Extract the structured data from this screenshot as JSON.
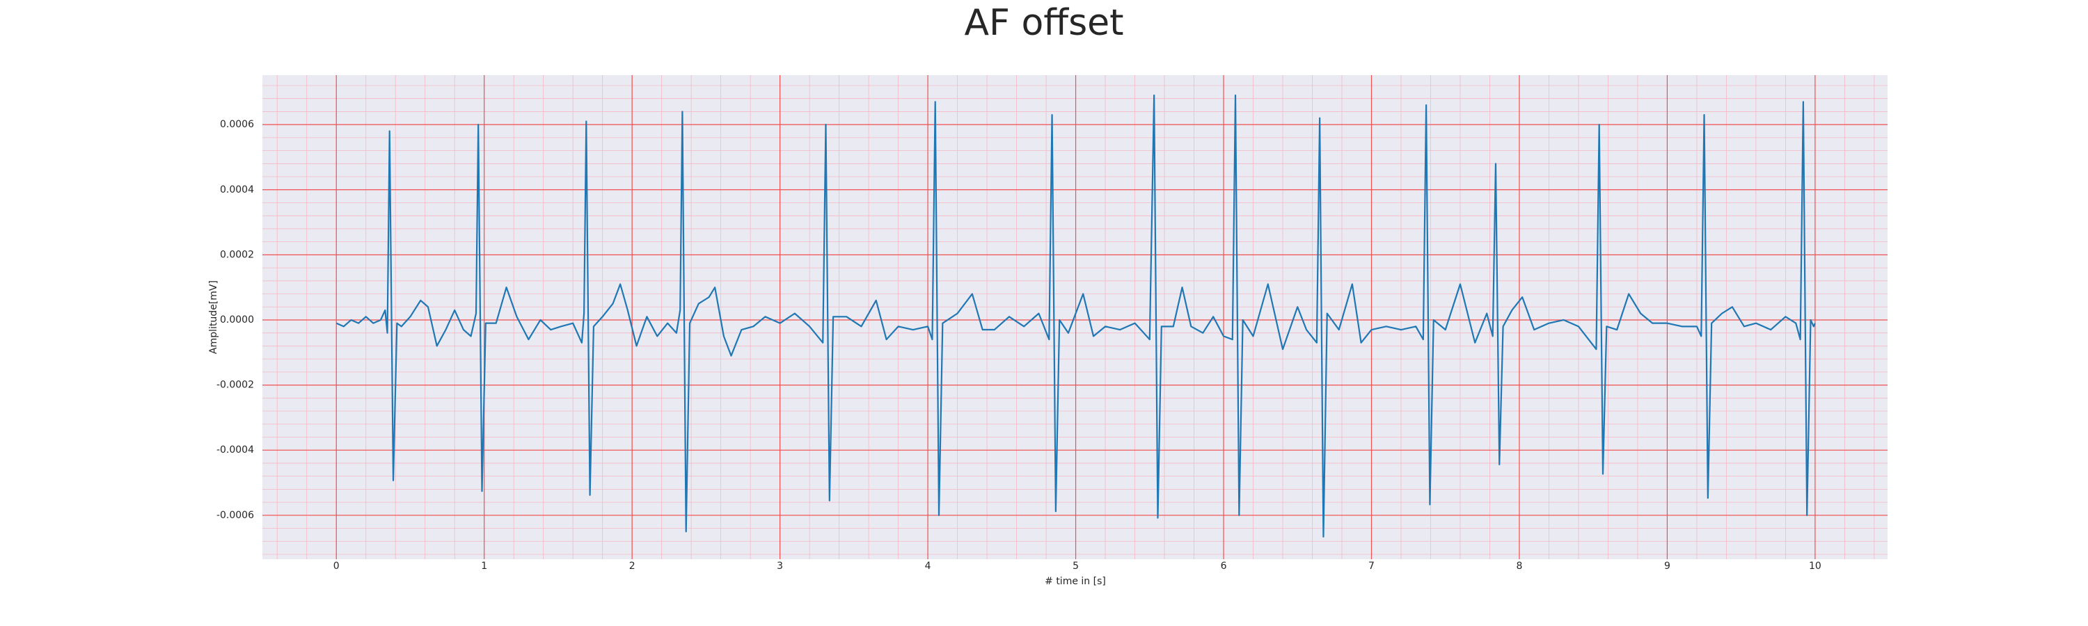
{
  "chart_data": {
    "type": "line",
    "title": "AF offset",
    "x_label": "# time in [s]",
    "y_label": "Amplitude[mV]",
    "color": "#1f77b4",
    "grid": true,
    "minor_grid": true,
    "xlim": [
      -0.5,
      10.49
    ],
    "ylim": [
      -0.000735,
      0.000752
    ],
    "xticks": [
      0,
      1,
      2,
      3,
      4,
      5,
      6,
      7,
      8,
      9,
      10
    ],
    "yticks": [
      -0.0006,
      -0.0004,
      -0.0002,
      {
        "value": 0,
        "label": "0.0000"
      },
      0.0002,
      0.0004,
      0.0006
    ],
    "x": [
      0.0,
      0.05,
      0.1,
      0.15,
      0.2,
      0.25,
      0.3,
      0.33,
      0.345,
      0.36,
      0.385,
      0.41,
      0.44,
      0.5,
      0.57,
      0.62,
      0.68,
      0.74,
      0.8,
      0.86,
      0.91,
      0.945,
      0.96,
      0.985,
      1.01,
      1.08,
      1.15,
      1.22,
      1.3,
      1.38,
      1.45,
      1.52,
      1.6,
      1.66,
      1.675,
      1.69,
      1.715,
      1.74,
      1.8,
      1.87,
      1.92,
      1.97,
      2.03,
      2.1,
      2.17,
      2.24,
      2.3,
      2.325,
      2.34,
      2.365,
      2.39,
      2.45,
      2.52,
      2.56,
      2.62,
      2.67,
      2.74,
      2.82,
      2.9,
      3.0,
      3.1,
      3.2,
      3.29,
      3.31,
      3.335,
      3.36,
      3.45,
      3.55,
      3.65,
      3.72,
      3.8,
      3.9,
      4.0,
      4.03,
      4.05,
      4.075,
      4.1,
      4.2,
      4.3,
      4.37,
      4.45,
      4.55,
      4.65,
      4.75,
      4.82,
      4.84,
      4.865,
      4.89,
      4.95,
      5.05,
      5.12,
      5.2,
      5.3,
      5.4,
      5.5,
      5.53,
      5.555,
      5.58,
      5.66,
      5.72,
      5.78,
      5.86,
      5.93,
      6.0,
      6.06,
      6.08,
      6.105,
      6.13,
      6.2,
      6.3,
      6.4,
      6.5,
      6.56,
      6.63,
      6.65,
      6.675,
      6.7,
      6.78,
      6.87,
      6.93,
      7.0,
      7.1,
      7.2,
      7.3,
      7.35,
      7.37,
      7.395,
      7.42,
      7.5,
      7.6,
      7.7,
      7.78,
      7.82,
      7.84,
      7.865,
      7.89,
      7.95,
      8.02,
      8.1,
      8.2,
      8.3,
      8.4,
      8.52,
      8.54,
      8.565,
      8.59,
      8.66,
      8.74,
      8.82,
      8.9,
      9.0,
      9.1,
      9.2,
      9.23,
      9.25,
      9.275,
      9.3,
      9.37,
      9.44,
      9.52,
      9.6,
      9.7,
      9.8,
      9.87,
      9.9,
      9.92,
      9.945,
      9.97,
      9.99,
      10.0
    ],
    "values": [
      -1e-05,
      -2e-05,
      0,
      -1e-05,
      1e-05,
      -1e-05,
      0,
      3e-05,
      -4e-05,
      0.00058,
      -0.000493,
      -1e-05,
      -2e-05,
      1e-05,
      6e-05,
      4e-05,
      -8e-05,
      -3e-05,
      3e-05,
      -3e-05,
      -5e-05,
      2e-05,
      0.0006,
      -0.000526,
      -1e-05,
      -1e-05,
      0.0001,
      1e-05,
      -6e-05,
      0,
      -3e-05,
      -2e-05,
      -1e-05,
      -7e-05,
      2e-05,
      0.00061,
      -0.000538,
      -2e-05,
      1e-05,
      5e-05,
      0.00011,
      3e-05,
      -8e-05,
      1e-05,
      -5e-05,
      -1e-05,
      -4e-05,
      3e-05,
      0.00064,
      -0.00065,
      -1e-05,
      5e-05,
      7e-05,
      0.0001,
      -5e-05,
      -0.00011,
      -3e-05,
      -2e-05,
      1e-05,
      -1e-05,
      2e-05,
      -2e-05,
      -7e-05,
      0.0006,
      -0.000555,
      1e-05,
      1e-05,
      -2e-05,
      6e-05,
      -6e-05,
      -2e-05,
      -3e-05,
      -2e-05,
      -6e-05,
      0.00067,
      -0.0006,
      -1e-05,
      2e-05,
      8e-05,
      -3e-05,
      -3e-05,
      1e-05,
      -2e-05,
      2e-05,
      -6e-05,
      0.00063,
      -0.000588,
      0,
      -4e-05,
      8e-05,
      -5e-05,
      -2e-05,
      -3e-05,
      -1e-05,
      -6e-05,
      0.00069,
      -0.000608,
      -2e-05,
      -2e-05,
      0.0001,
      -2e-05,
      -4e-05,
      1e-05,
      -5e-05,
      -6e-05,
      0.00069,
      -0.0006,
      0,
      -5e-05,
      0.00011,
      -9e-05,
      4e-05,
      -3e-05,
      -7e-05,
      0.00062,
      -0.000666,
      2e-05,
      -3e-05,
      0.00011,
      -7e-05,
      -3e-05,
      -2e-05,
      -3e-05,
      -2e-05,
      -6e-05,
      0.00066,
      -0.000567,
      0,
      -3e-05,
      0.00011,
      -7e-05,
      2e-05,
      -5e-05,
      0.00048,
      -0.000444,
      -2e-05,
      3e-05,
      7e-05,
      -3e-05,
      -1e-05,
      0,
      -2e-05,
      -9e-05,
      0.0006,
      -0.000473,
      -2e-05,
      -3e-05,
      8e-05,
      2e-05,
      -1e-05,
      -1e-05,
      -2e-05,
      -2e-05,
      -5e-05,
      0.00063,
      -0.000547,
      -1e-05,
      2e-05,
      4e-05,
      -2e-05,
      -1e-05,
      -3e-05,
      1e-05,
      -1e-05,
      -6e-05,
      0.00067,
      -0.0006,
      0,
      -2e-05,
      -1e-05
    ]
  }
}
